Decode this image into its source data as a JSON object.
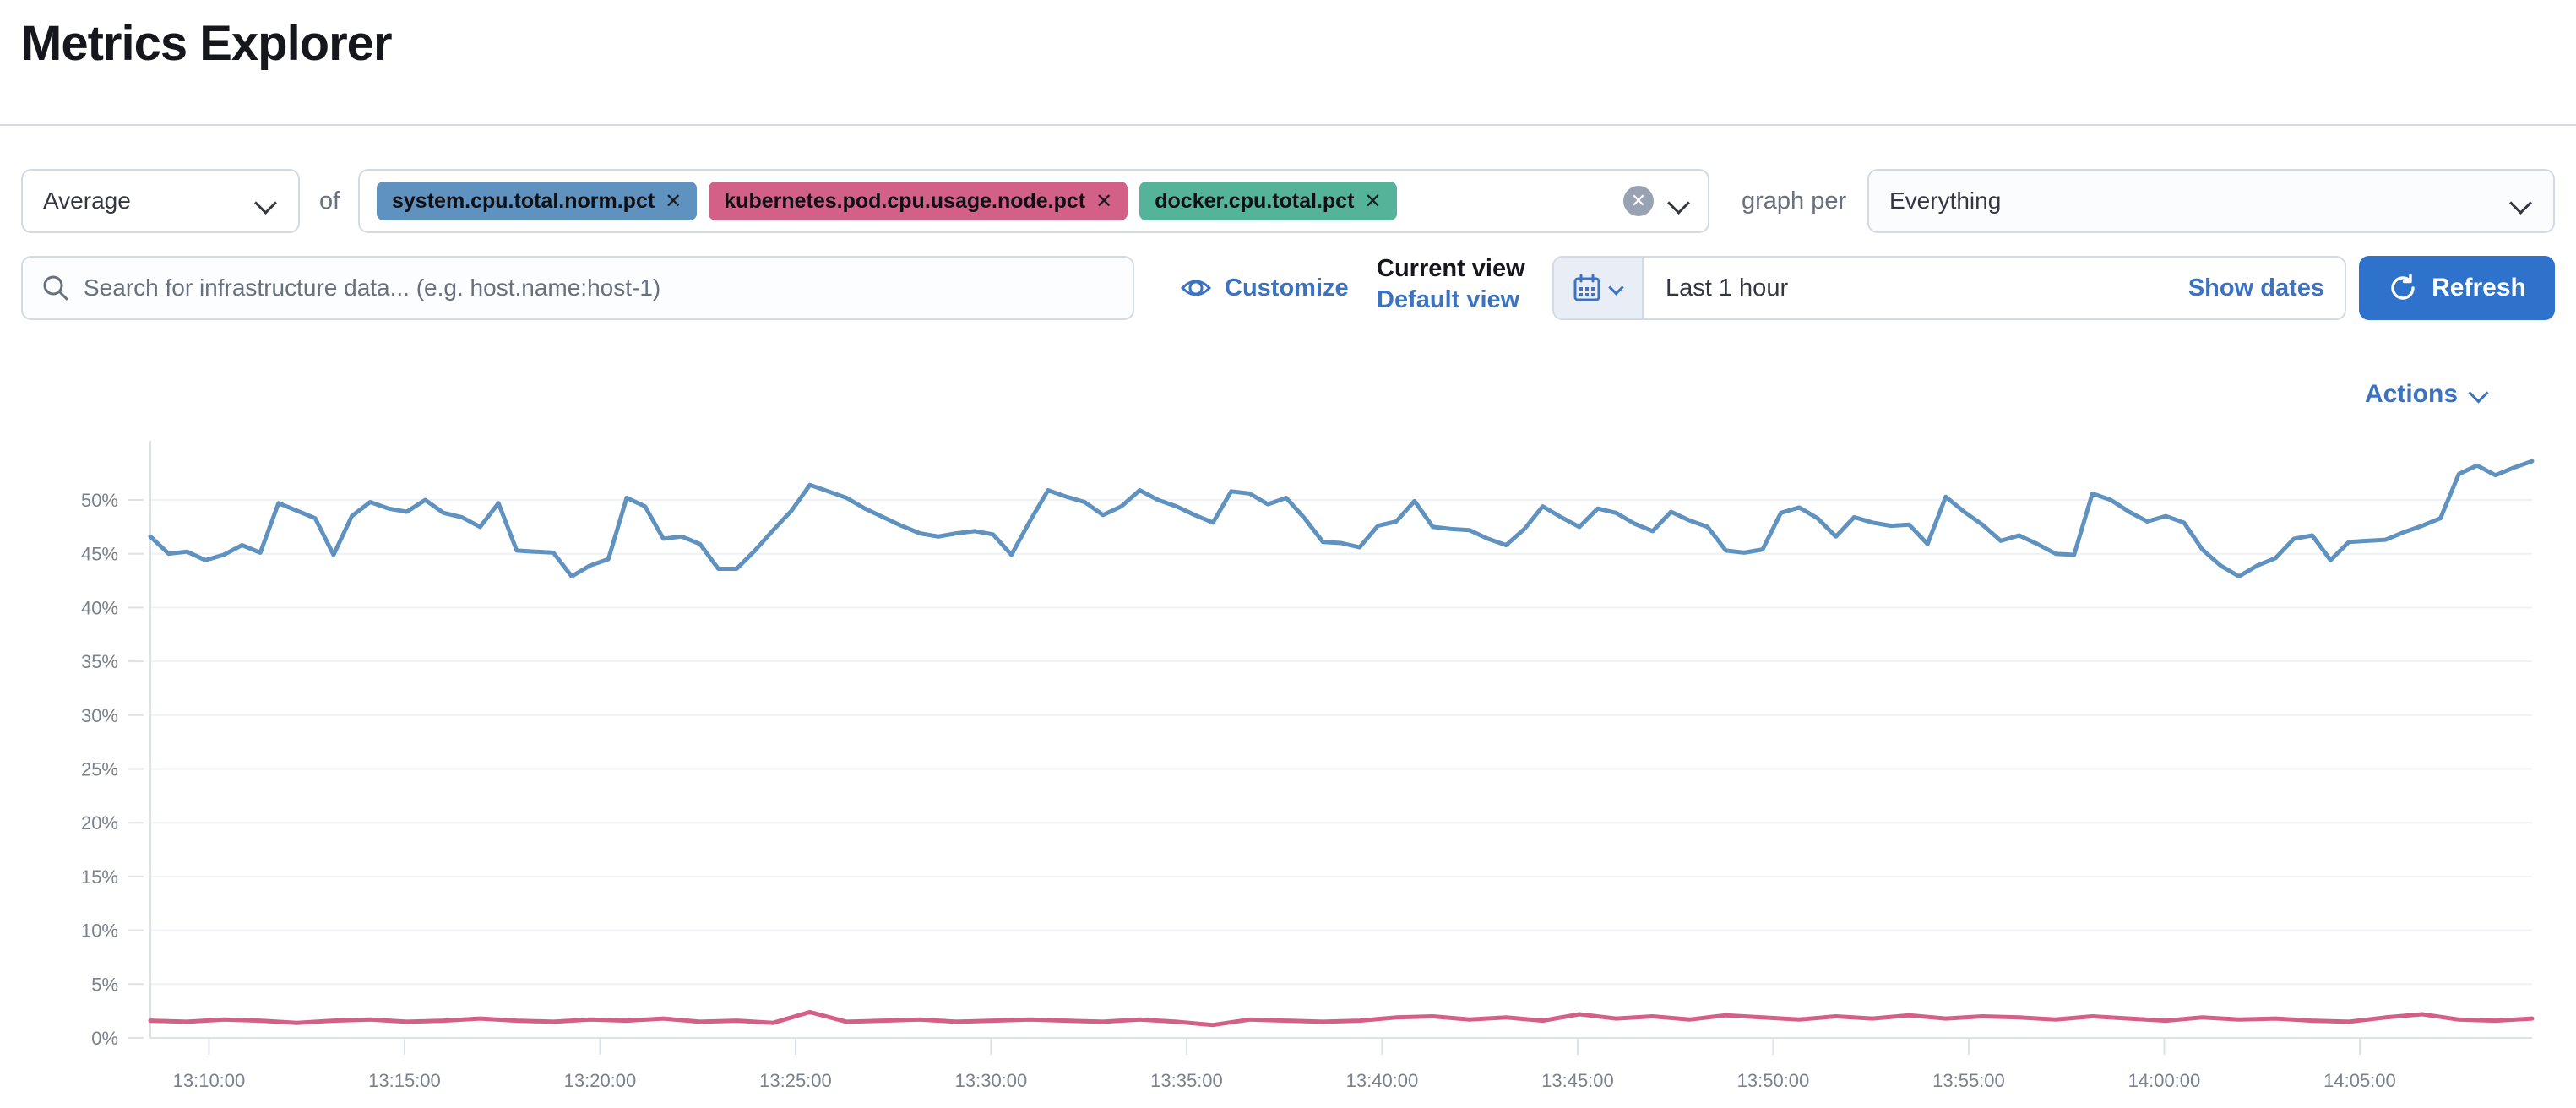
{
  "page": {
    "title": "Metrics Explorer"
  },
  "toolbar": {
    "aggregation": {
      "value": "Average"
    },
    "of_label": "of",
    "metrics": [
      {
        "label": "system.cpu.total.norm.pct",
        "remove_glyph": "✕",
        "color": "#6092C0"
      },
      {
        "label": "kubernetes.pod.cpu.usage.node.pct",
        "remove_glyph": "✕",
        "color": "#D36086"
      },
      {
        "label": "docker.cpu.total.pct",
        "remove_glyph": "✕",
        "color": "#54B399"
      }
    ],
    "clear_glyph": "✕",
    "graph_per_label": "graph per",
    "graph_per": {
      "value": "Everything"
    }
  },
  "search": {
    "placeholder": "Search for infrastructure data... (e.g. host.name:host-1)"
  },
  "view_controls": {
    "customize_label": "Customize",
    "current_view_label": "Current view",
    "view_name": "Default view"
  },
  "datepicker": {
    "range_label": "Last 1 hour",
    "show_dates_label": "Show dates",
    "refresh_label": "Refresh"
  },
  "actions_label": "Actions",
  "colors": {
    "link_blue": "#3b73c2",
    "button_blue": "#2f72cc",
    "series_blue": "#6092C0",
    "series_pink": "#D36086",
    "axis_text": "#7b808c",
    "grid": "#eef1f5",
    "axis_line": "#dde1e8"
  },
  "chart_data": {
    "type": "line",
    "title": "",
    "xlabel": "",
    "ylabel": "",
    "ylim": [
      0,
      55.5
    ],
    "grid": true,
    "legend": "none",
    "duration_minutes": 60.9,
    "y_ticks": [
      {
        "v": 0,
        "label": "0%"
      },
      {
        "v": 5,
        "label": "5%"
      },
      {
        "v": 10,
        "label": "10%"
      },
      {
        "v": 15,
        "label": "15%"
      },
      {
        "v": 20,
        "label": "20%"
      },
      {
        "v": 25,
        "label": "25%"
      },
      {
        "v": 30,
        "label": "30%"
      },
      {
        "v": 35,
        "label": "35%"
      },
      {
        "v": 40,
        "label": "40%"
      },
      {
        "v": 45,
        "label": "45%"
      },
      {
        "v": 50,
        "label": "50%"
      }
    ],
    "x_ticks": [
      {
        "t": 1.5,
        "label": "13:10:00"
      },
      {
        "t": 6.5,
        "label": "13:15:00"
      },
      {
        "t": 11.5,
        "label": "13:20:00"
      },
      {
        "t": 16.5,
        "label": "13:25:00"
      },
      {
        "t": 21.5,
        "label": "13:30:00"
      },
      {
        "t": 26.5,
        "label": "13:35:00"
      },
      {
        "t": 31.5,
        "label": "13:40:00"
      },
      {
        "t": 36.5,
        "label": "13:45:00"
      },
      {
        "t": 41.5,
        "label": "13:50:00"
      },
      {
        "t": 46.5,
        "label": "13:55:00"
      },
      {
        "t": 51.5,
        "label": "14:00:00"
      },
      {
        "t": 56.5,
        "label": "14:05:00"
      }
    ],
    "series": [
      {
        "name": "system.cpu.total.norm.pct (Average)",
        "color": "#6092C0",
        "unit": "%",
        "values": [
          46.6,
          45.0,
          45.2,
          44.4,
          44.9,
          45.8,
          45.1,
          49.7,
          49.0,
          48.3,
          44.9,
          48.5,
          49.8,
          49.2,
          48.9,
          50.0,
          48.8,
          48.4,
          47.5,
          49.7,
          45.3,
          45.2,
          45.1,
          42.9,
          43.9,
          44.5,
          50.2,
          49.4,
          46.4,
          46.6,
          45.9,
          43.6,
          43.6,
          45.3,
          47.2,
          49.0,
          51.4,
          50.8,
          50.2,
          49.2,
          48.4,
          47.6,
          46.9,
          46.6,
          46.9,
          47.1,
          46.8,
          44.9,
          48.0,
          50.9,
          50.3,
          49.8,
          48.6,
          49.4,
          50.9,
          50.0,
          49.4,
          48.6,
          47.9,
          50.8,
          50.6,
          49.6,
          50.2,
          48.3,
          46.1,
          46.0,
          45.6,
          47.6,
          48.0,
          49.9,
          47.5,
          47.3,
          47.2,
          46.4,
          45.8,
          47.3,
          49.4,
          48.4,
          47.5,
          49.2,
          48.8,
          47.8,
          47.1,
          48.9,
          48.1,
          47.5,
          45.3,
          45.1,
          45.4,
          48.8,
          49.3,
          48.3,
          46.6,
          48.4,
          47.9,
          47.6,
          47.7,
          45.9,
          50.3,
          48.9,
          47.7,
          46.2,
          46.7,
          45.9,
          45.0,
          44.9,
          50.6,
          50.0,
          48.9,
          48.0,
          48.5,
          47.9,
          45.4,
          43.9,
          42.9,
          43.9,
          44.6,
          46.4,
          46.7,
          44.4,
          46.1,
          46.2,
          46.3,
          47.0,
          47.6,
          48.3,
          52.4,
          53.2,
          52.3,
          53.0,
          53.6
        ]
      },
      {
        "name": "kubernetes.pod.cpu.usage.node.pct (Average)",
        "color": "#D36086",
        "unit": "%",
        "values": [
          1.6,
          1.5,
          1.7,
          1.6,
          1.4,
          1.6,
          1.7,
          1.5,
          1.6,
          1.8,
          1.6,
          1.5,
          1.7,
          1.6,
          1.8,
          1.5,
          1.6,
          1.4,
          2.4,
          1.5,
          1.6,
          1.7,
          1.5,
          1.6,
          1.7,
          1.6,
          1.5,
          1.7,
          1.5,
          1.2,
          1.7,
          1.6,
          1.5,
          1.6,
          1.9,
          2.0,
          1.7,
          1.9,
          1.6,
          2.2,
          1.8,
          2.0,
          1.7,
          2.1,
          1.9,
          1.7,
          2.0,
          1.8,
          2.1,
          1.8,
          2.0,
          1.9,
          1.7,
          2.0,
          1.8,
          1.6,
          1.9,
          1.7,
          1.8,
          1.6,
          1.5,
          1.9,
          2.2,
          1.7,
          1.6,
          1.8
        ]
      }
    ]
  }
}
